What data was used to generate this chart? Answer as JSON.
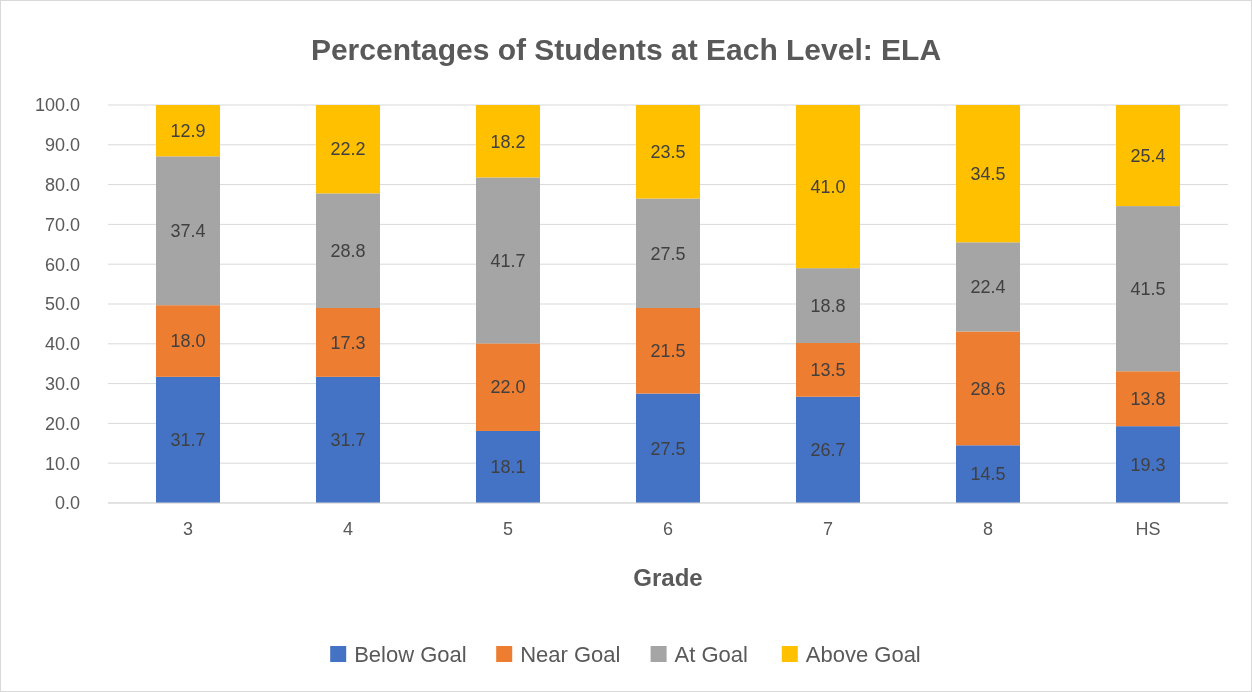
{
  "chart_data": {
    "type": "bar",
    "stacked": true,
    "title": "Percentages of Students at Each Level: ELA",
    "xlabel": "Grade",
    "categories": [
      "3",
      "4",
      "5",
      "6",
      "7",
      "8",
      "HS"
    ],
    "series": [
      {
        "name": "Below Goal",
        "color": "#4472c4",
        "values": [
          31.7,
          31.7,
          18.1,
          27.5,
          26.7,
          14.5,
          19.3
        ],
        "value_labels": [
          "31.7",
          "31.7",
          "18.1",
          "27.5",
          "26.7",
          "14.5",
          "19.3"
        ]
      },
      {
        "name": "Near Goal",
        "color": "#ed7d31",
        "values": [
          18.0,
          17.3,
          22.0,
          21.5,
          13.5,
          28.6,
          13.8
        ],
        "value_labels": [
          "18.0",
          "17.3",
          "22.0",
          "21.5",
          "13.5",
          "28.6",
          "13.8"
        ]
      },
      {
        "name": "At Goal",
        "color": "#a5a5a5",
        "values": [
          37.4,
          28.8,
          41.7,
          27.5,
          18.8,
          22.4,
          41.5
        ],
        "value_labels": [
          "37.4",
          "28.8",
          "41.7",
          "27.5",
          "18.8",
          "22.4",
          "41.5"
        ]
      },
      {
        "name": "Above Goal",
        "color": "#ffc000",
        "values": [
          12.9,
          22.2,
          18.2,
          23.5,
          41.0,
          34.5,
          25.4
        ],
        "value_labels": [
          "12.9",
          "22.2",
          "18.2",
          "23.5",
          "41.0",
          "34.5",
          "25.4"
        ]
      }
    ],
    "ylim": [
      0,
      100
    ],
    "yticks": [
      {
        "value": 0,
        "label": "0.0"
      },
      {
        "value": 10,
        "label": "10.0"
      },
      {
        "value": 20,
        "label": "20.0"
      },
      {
        "value": 30,
        "label": "30.0"
      },
      {
        "value": 40,
        "label": "40.0"
      },
      {
        "value": 50,
        "label": "50.0"
      },
      {
        "value": 60,
        "label": "60.0"
      },
      {
        "value": 70,
        "label": "70.0"
      },
      {
        "value": 80,
        "label": "80.0"
      },
      {
        "value": 90,
        "label": "90.0"
      },
      {
        "value": 100,
        "label": "100.0"
      }
    ],
    "grid": "y",
    "legend": "bottom"
  }
}
